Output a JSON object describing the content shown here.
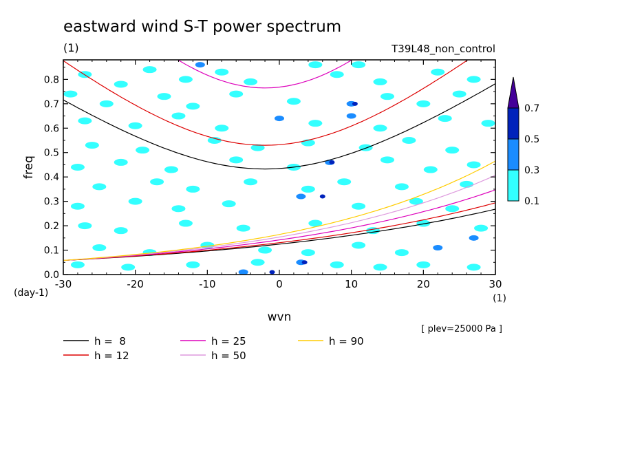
{
  "chart_data": {
    "type": "heatmap",
    "title": "eastward wind S-T power spectrum",
    "units_label": "(1)",
    "subtitle": "T39L48_non_control",
    "xlabel": "wvn",
    "xunit": "(1)",
    "ylabel": "freq",
    "yunit": "(day-1)",
    "xlim": [
      -30,
      30
    ],
    "ylim": [
      0,
      0.88
    ],
    "x_ticks": [
      -30,
      -20,
      -10,
      0,
      10,
      20,
      30
    ],
    "y_ticks": [
      0.0,
      0.1,
      0.2,
      0.3,
      0.4,
      0.5,
      0.6,
      0.7,
      0.8
    ],
    "x_tick_labels": [
      "-30",
      "-20",
      "-10",
      "0",
      "10",
      "20",
      "30"
    ],
    "y_tick_labels": [
      "0.0",
      "0.1",
      "0.2",
      "0.3",
      "0.4",
      "0.5",
      "0.6",
      "0.7",
      "0.8"
    ],
    "annotation": "[ plev=25000 Pa ]",
    "colorbar": {
      "levels": [
        0.1,
        0.3,
        0.5,
        0.7
      ],
      "labels": [
        "0.1",
        "0.3",
        "0.5",
        "0.7"
      ],
      "colors": [
        "#33ffff",
        "#1a8cff",
        "#0022bb",
        "#440099"
      ]
    },
    "dispersion_curves": [
      {
        "name": "h =  8",
        "h": 8,
        "color": "#000000"
      },
      {
        "name": "h = 12",
        "h": 12,
        "color": "#dd0000"
      },
      {
        "name": "h = 25",
        "h": 25,
        "color": "#dd00bb"
      },
      {
        "name": "h = 50",
        "h": 50,
        "color": "#dd99dd"
      },
      {
        "name": "h = 90",
        "h": 90,
        "color": "#ffcc00"
      }
    ],
    "spectral_patches": [
      {
        "x": -27,
        "y": 0.82,
        "level": 1
      },
      {
        "x": -22,
        "y": 0.78,
        "level": 1
      },
      {
        "x": -18,
        "y": 0.84,
        "level": 1
      },
      {
        "x": -13,
        "y": 0.8,
        "level": 1
      },
      {
        "x": -11,
        "y": 0.86,
        "level": 2
      },
      {
        "x": -8,
        "y": 0.83,
        "level": 1
      },
      {
        "x": -4,
        "y": 0.79,
        "level": 1
      },
      {
        "x": 5,
        "y": 0.86,
        "level": 1
      },
      {
        "x": 8,
        "y": 0.82,
        "level": 1
      },
      {
        "x": 11,
        "y": 0.86,
        "level": 1
      },
      {
        "x": 14,
        "y": 0.79,
        "level": 1
      },
      {
        "x": 22,
        "y": 0.83,
        "level": 1
      },
      {
        "x": 27,
        "y": 0.8,
        "level": 1
      },
      {
        "x": -29,
        "y": 0.74,
        "level": 1
      },
      {
        "x": -24,
        "y": 0.7,
        "level": 1
      },
      {
        "x": -16,
        "y": 0.73,
        "level": 1
      },
      {
        "x": -12,
        "y": 0.69,
        "level": 1
      },
      {
        "x": -6,
        "y": 0.74,
        "level": 1
      },
      {
        "x": 2,
        "y": 0.71,
        "level": 1
      },
      {
        "x": 10,
        "y": 0.7,
        "level": 2
      },
      {
        "x": 10.5,
        "y": 0.7,
        "level": 3
      },
      {
        "x": 15,
        "y": 0.73,
        "level": 1
      },
      {
        "x": 20,
        "y": 0.7,
        "level": 1
      },
      {
        "x": 25,
        "y": 0.74,
        "level": 1
      },
      {
        "x": -27,
        "y": 0.63,
        "level": 1
      },
      {
        "x": -20,
        "y": 0.61,
        "level": 1
      },
      {
        "x": -14,
        "y": 0.65,
        "level": 1
      },
      {
        "x": -8,
        "y": 0.6,
        "level": 1
      },
      {
        "x": 0,
        "y": 0.64,
        "level": 2
      },
      {
        "x": 5,
        "y": 0.62,
        "level": 1
      },
      {
        "x": 10,
        "y": 0.65,
        "level": 2
      },
      {
        "x": 14,
        "y": 0.6,
        "level": 1
      },
      {
        "x": 23,
        "y": 0.64,
        "level": 1
      },
      {
        "x": 29,
        "y": 0.62,
        "level": 1
      },
      {
        "x": -26,
        "y": 0.53,
        "level": 1
      },
      {
        "x": -19,
        "y": 0.51,
        "level": 1
      },
      {
        "x": -9,
        "y": 0.55,
        "level": 1
      },
      {
        "x": -3,
        "y": 0.52,
        "level": 1
      },
      {
        "x": 4,
        "y": 0.54,
        "level": 1
      },
      {
        "x": 12,
        "y": 0.52,
        "level": 1
      },
      {
        "x": 18,
        "y": 0.55,
        "level": 1
      },
      {
        "x": 24,
        "y": 0.51,
        "level": 1
      },
      {
        "x": -28,
        "y": 0.44,
        "level": 1
      },
      {
        "x": -22,
        "y": 0.46,
        "level": 1
      },
      {
        "x": -15,
        "y": 0.43,
        "level": 1
      },
      {
        "x": -6,
        "y": 0.47,
        "level": 1
      },
      {
        "x": 2,
        "y": 0.44,
        "level": 1
      },
      {
        "x": 7,
        "y": 0.46,
        "level": 2
      },
      {
        "x": 7.3,
        "y": 0.46,
        "level": 3
      },
      {
        "x": 15,
        "y": 0.47,
        "level": 1
      },
      {
        "x": 21,
        "y": 0.43,
        "level": 1
      },
      {
        "x": 27,
        "y": 0.45,
        "level": 1
      },
      {
        "x": -25,
        "y": 0.36,
        "level": 1
      },
      {
        "x": -17,
        "y": 0.38,
        "level": 1
      },
      {
        "x": -12,
        "y": 0.35,
        "level": 1
      },
      {
        "x": -4,
        "y": 0.38,
        "level": 1
      },
      {
        "x": 4,
        "y": 0.35,
        "level": 1
      },
      {
        "x": 9,
        "y": 0.38,
        "level": 1
      },
      {
        "x": 17,
        "y": 0.36,
        "level": 1
      },
      {
        "x": 26,
        "y": 0.37,
        "level": 1
      },
      {
        "x": -28,
        "y": 0.28,
        "level": 1
      },
      {
        "x": -20,
        "y": 0.3,
        "level": 1
      },
      {
        "x": -14,
        "y": 0.27,
        "level": 1
      },
      {
        "x": -7,
        "y": 0.29,
        "level": 1
      },
      {
        "x": 3,
        "y": 0.32,
        "level": 2
      },
      {
        "x": 6,
        "y": 0.32,
        "level": 3
      },
      {
        "x": 11,
        "y": 0.28,
        "level": 1
      },
      {
        "x": 19,
        "y": 0.3,
        "level": 1
      },
      {
        "x": 24,
        "y": 0.27,
        "level": 1
      },
      {
        "x": -27,
        "y": 0.2,
        "level": 1
      },
      {
        "x": -22,
        "y": 0.18,
        "level": 1
      },
      {
        "x": -13,
        "y": 0.21,
        "level": 1
      },
      {
        "x": -5,
        "y": 0.19,
        "level": 1
      },
      {
        "x": 5,
        "y": 0.21,
        "level": 1
      },
      {
        "x": 13,
        "y": 0.18,
        "level": 1
      },
      {
        "x": 20,
        "y": 0.21,
        "level": 1
      },
      {
        "x": 28,
        "y": 0.19,
        "level": 1
      },
      {
        "x": -25,
        "y": 0.11,
        "level": 1
      },
      {
        "x": -18,
        "y": 0.09,
        "level": 1
      },
      {
        "x": -10,
        "y": 0.12,
        "level": 1
      },
      {
        "x": -2,
        "y": 0.1,
        "level": 1
      },
      {
        "x": 4,
        "y": 0.09,
        "level": 1
      },
      {
        "x": 11,
        "y": 0.12,
        "level": 1
      },
      {
        "x": 17,
        "y": 0.09,
        "level": 1
      },
      {
        "x": 22,
        "y": 0.11,
        "level": 2
      },
      {
        "x": 27,
        "y": 0.15,
        "level": 2
      },
      {
        "x": -28,
        "y": 0.04,
        "level": 1
      },
      {
        "x": -21,
        "y": 0.03,
        "level": 1
      },
      {
        "x": -12,
        "y": 0.04,
        "level": 1
      },
      {
        "x": -3,
        "y": 0.05,
        "level": 1
      },
      {
        "x": 3,
        "y": 0.05,
        "level": 2
      },
      {
        "x": 3.5,
        "y": 0.05,
        "level": 3
      },
      {
        "x": -5,
        "y": 0.01,
        "level": 2
      },
      {
        "x": -1,
        "y": 0.01,
        "level": 3
      },
      {
        "x": 8,
        "y": 0.04,
        "level": 1
      },
      {
        "x": 14,
        "y": 0.03,
        "level": 1
      },
      {
        "x": 20,
        "y": 0.04,
        "level": 1
      },
      {
        "x": 27,
        "y": 0.03,
        "level": 1
      }
    ]
  }
}
